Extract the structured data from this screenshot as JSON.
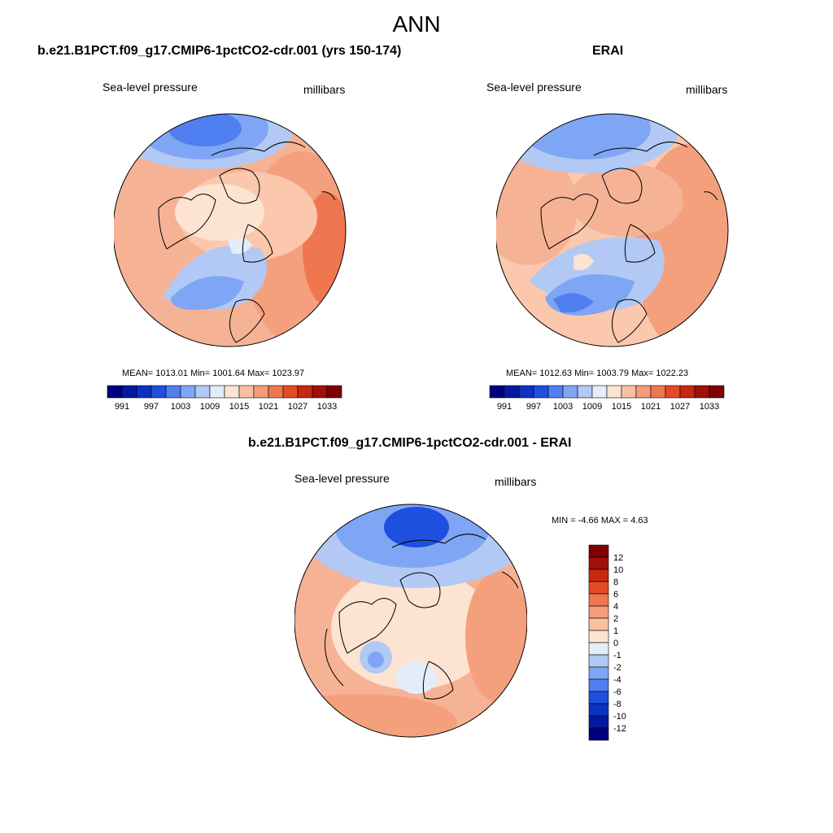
{
  "title": "ANN",
  "colors": {
    "levels": [
      "#00007f",
      "#0519a0",
      "#0a33c2",
      "#1f4fdf",
      "#4f7ff0",
      "#7fa5f5",
      "#b2c9f5",
      "#e3edf9",
      "#fde3d2",
      "#fbc0a2",
      "#f59c78",
      "#ef7750",
      "#e64a25",
      "#c8280f",
      "#a01008",
      "#7f0000"
    ],
    "land": "#000000"
  },
  "chart_data": [
    {
      "type": "heatmap",
      "projection": "north-polar-stereographic",
      "title": "b.e21.B1PCT.f09_g17.CMIP6-1pctCO2-cdr.001 (yrs 150-174)",
      "variable": "Sea-level pressure",
      "units": "millibars",
      "mean": "1013.01",
      "min": "1001.64",
      "max": "1023.97",
      "stats_text": "MEAN= 1013.01   Min= 1001.64   Max= 1023.97",
      "colorbar": {
        "orientation": "horizontal",
        "levels": [
          991,
          994,
          997,
          1000,
          1003,
          1006,
          1009,
          1012,
          1015,
          1018,
          1021,
          1024,
          1027,
          1030,
          1033
        ],
        "tick_labels": [
          "991",
          "997",
          "1003",
          "1009",
          "1015",
          "1021",
          "1027",
          "1033"
        ]
      }
    },
    {
      "type": "heatmap",
      "projection": "north-polar-stereographic",
      "title": "ERAI",
      "variable": "Sea-level pressure",
      "units": "millibars",
      "mean": "1012.63",
      "min": "1003.79",
      "max": "1022.23",
      "stats_text": "MEAN= 1012.63   Min= 1003.79   Max= 1022.23",
      "colorbar": {
        "orientation": "horizontal",
        "levels": [
          991,
          994,
          997,
          1000,
          1003,
          1006,
          1009,
          1012,
          1015,
          1018,
          1021,
          1024,
          1027,
          1030,
          1033
        ],
        "tick_labels": [
          "991",
          "997",
          "1003",
          "1009",
          "1015",
          "1021",
          "1027",
          "1033"
        ]
      }
    },
    {
      "type": "heatmap",
      "projection": "north-polar-stereographic",
      "title": "b.e21.B1PCT.f09_g17.CMIP6-1pctCO2-cdr.001 - ERAI",
      "variable": "Sea-level pressure",
      "units": "millibars",
      "min": "-4.66",
      "max": "4.63",
      "stats_text": "MIN =  -4.66 MAX =   4.63",
      "colorbar": {
        "orientation": "vertical",
        "levels": [
          -12,
          -10,
          -8,
          -6,
          -4,
          -2,
          -1,
          0,
          1,
          2,
          4,
          6,
          8,
          10,
          12
        ],
        "tick_labels": [
          "12",
          "10",
          "8",
          "6",
          "4",
          "2",
          "1",
          "0",
          "-1",
          "-2",
          "-4",
          "-6",
          "-8",
          "-10",
          "-12"
        ]
      }
    }
  ]
}
